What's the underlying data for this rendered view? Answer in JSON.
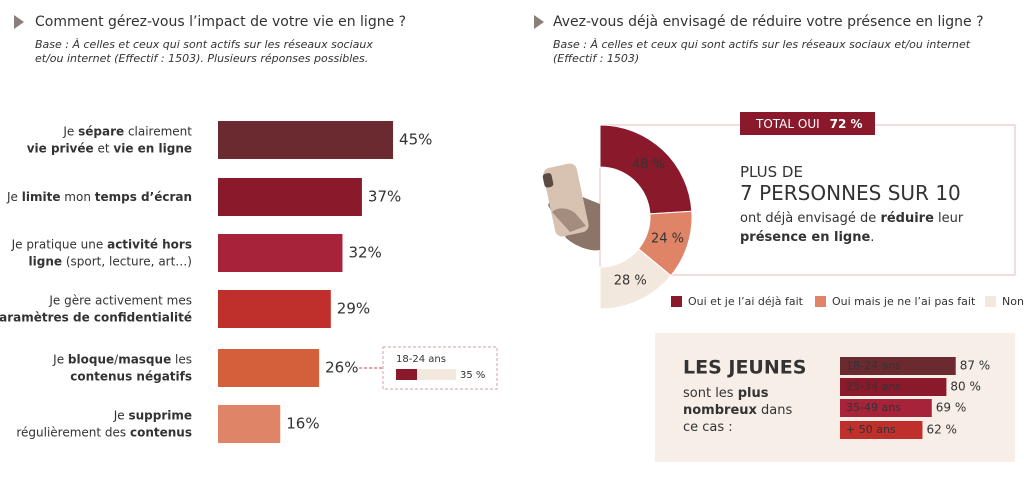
{
  "chart_data": [
    {
      "type": "bar",
      "orientation": "horizontal",
      "title": "Comment gérez-vous l’impact de votre vie en ligne ?",
      "subtitle": [
        "Base : À celles et ceux qui sont actifs sur les réseaux sociaux",
        "et/ou internet (Effectif : 1503). Plusieurs réponses possibles."
      ],
      "categories": [
        [
          [
            {
              "text": "Je ",
              "bold": false
            },
            {
              "text": "sépare",
              "bold": true
            },
            {
              "text": " clairement",
              "bold": false
            }
          ],
          [
            {
              "text": "vie privée",
              "bold": true
            },
            {
              "text": " et ",
              "bold": false
            },
            {
              "text": "vie en ligne",
              "bold": true
            }
          ]
        ],
        [
          [
            {
              "text": "Je ",
              "bold": false
            },
            {
              "text": "limite",
              "bold": true
            },
            {
              "text": " mon ",
              "bold": false
            },
            {
              "text": "temps d’écran",
              "bold": true
            }
          ]
        ],
        [
          [
            {
              "text": "Je pratique une ",
              "bold": false
            },
            {
              "text": "activité hors",
              "bold": true
            }
          ],
          [
            {
              "text": "ligne",
              "bold": true
            },
            {
              "text": " (sport, lecture, art…)",
              "bold": false
            }
          ]
        ],
        [
          [
            {
              "text": "Je gère activement mes",
              "bold": false
            }
          ],
          [
            {
              "text": "paramètres de confidentialité",
              "bold": true
            }
          ]
        ],
        [
          [
            {
              "text": "Je ",
              "bold": false
            },
            {
              "text": "bloque",
              "bold": true
            },
            {
              "text": "/",
              "bold": false
            },
            {
              "text": "masque",
              "bold": true
            },
            {
              "text": " les",
              "bold": false
            }
          ],
          [
            {
              "text": "contenus négatifs",
              "bold": true
            }
          ]
        ],
        [
          [
            {
              "text": "Je ",
              "bold": false
            },
            {
              "text": "supprime",
              "bold": true
            }
          ],
          [
            {
              "text": "régulièrement des ",
              "bold": false
            },
            {
              "text": "contenus",
              "bold": true
            }
          ]
        ]
      ],
      "values": [
        45,
        37,
        32,
        29,
        26,
        16
      ],
      "value_labels": [
        "45%",
        "37%",
        "32%",
        "29%",
        "26%",
        "16%"
      ],
      "colors": [
        "#6b2a30",
        "#8a1a2b",
        "#a6233a",
        "#bf2f2b",
        "#d4603b",
        "#e08468"
      ],
      "xlim": [
        0,
        100
      ],
      "inset": {
        "index": 4,
        "label": "18-24 ans",
        "value": 35,
        "value_label": "35 %",
        "color": "#8a1a2b"
      }
    },
    {
      "type": "pie",
      "style": "half-donut",
      "title": "Avez-vous déjà envisagé de réduire votre présence en ligne ?",
      "subtitle": [
        "Base : À celles et ceux qui sont actifs sur les réseaux sociaux et/ou internet",
        "(Effectif : 1503)"
      ],
      "categories": [
        "Oui et je l’ai déjà fait",
        "Oui mais je ne l’ai pas fait",
        "Non"
      ],
      "values": [
        48,
        24,
        28
      ],
      "value_labels": [
        "48 %",
        "24 %",
        "28 %"
      ],
      "colors": [
        "#8a1a2b",
        "#e08468",
        "#f3e8de"
      ],
      "total": {
        "label": "TOTAL OUI",
        "value": 72,
        "value_label": "72 %"
      },
      "callout": [
        [
          {
            "text": "PLUS DE",
            "bold": false
          }
        ],
        [
          {
            "text": "7 PERSONNES SUR 10",
            "bold": false
          }
        ],
        [
          {
            "text": "ont déjà envisagé de ",
            "bold": false
          },
          {
            "text": "réduire",
            "bold": true
          },
          {
            "text": " leur",
            "bold": false
          }
        ],
        [
          {
            "text": "présence en ligne",
            "bold": true
          },
          {
            "text": ".",
            "bold": false
          }
        ]
      ]
    },
    {
      "type": "bar",
      "orientation": "horizontal",
      "title": "LES JEUNES",
      "subtitle": [
        [
          {
            "text": "sont les ",
            "bold": false
          },
          {
            "text": "plus",
            "bold": true
          }
        ],
        [
          {
            "text": "nombreux",
            "bold": true
          },
          {
            "text": " dans",
            "bold": false
          }
        ],
        [
          {
            "text": "ce cas :",
            "bold": false
          }
        ]
      ],
      "categories": [
        "18-24 ans",
        "25-34 ans",
        "35-49 ans",
        "+ 50 ans"
      ],
      "values": [
        87,
        80,
        69,
        62
      ],
      "value_labels": [
        "87 %",
        "80 %",
        "69 %",
        "62 %"
      ],
      "colors": [
        "#6b2a30",
        "#8a1a2b",
        "#a6233a",
        "#bf2f2b"
      ],
      "xlim": [
        0,
        100
      ]
    }
  ]
}
